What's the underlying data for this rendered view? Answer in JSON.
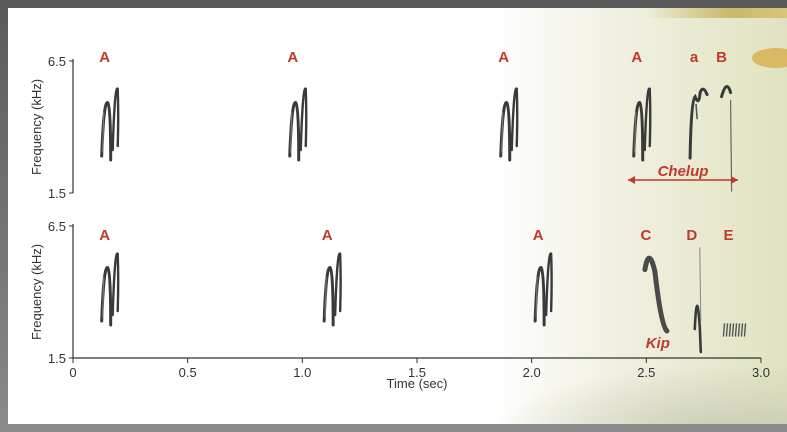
{
  "chart_data": {
    "type": "spectrogram",
    "xlabel": "Time (sec)",
    "xticks": [
      "0",
      "0.5",
      "1.0",
      "1.5",
      "2.0",
      "2.5",
      "3.0"
    ],
    "xlim": [
      0,
      3.0
    ],
    "panels": [
      {
        "ylabel": "Frequency (kHz)",
        "ylim": [
          1.5,
          6.5
        ],
        "yticks": [
          "1.5",
          "6.5"
        ],
        "syllables": [
          {
            "label": "A",
            "t": 0.16
          },
          {
            "label": "A",
            "t": 0.98
          },
          {
            "label": "A",
            "t": 1.9
          },
          {
            "label": "A",
            "t": 2.48
          },
          {
            "label": "a",
            "t": 2.73
          },
          {
            "label": "B",
            "t": 2.85
          }
        ],
        "annotation": {
          "text": "Chelup",
          "t_start": 2.42,
          "t_end": 2.9
        }
      },
      {
        "ylabel": "Frequency (kHz)",
        "ylim": [
          1.5,
          6.5
        ],
        "yticks": [
          "1.5",
          "6.5"
        ],
        "syllables": [
          {
            "label": "A",
            "t": 0.16
          },
          {
            "label": "A",
            "t": 1.13
          },
          {
            "label": "A",
            "t": 2.05
          },
          {
            "label": "C",
            "t": 2.52
          },
          {
            "label": "D",
            "t": 2.72
          },
          {
            "label": "E",
            "t": 2.88
          }
        ],
        "annotation": {
          "text": "Kip",
          "t_start": 2.47,
          "t_end": 2.63
        }
      }
    ]
  }
}
